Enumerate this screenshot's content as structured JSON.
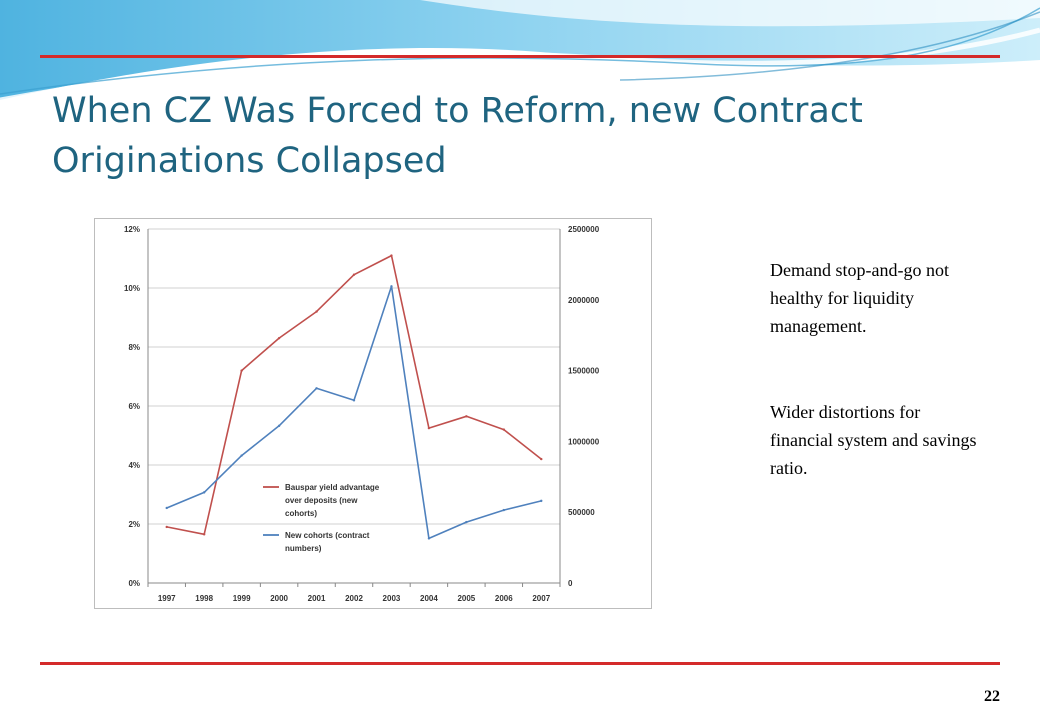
{
  "slide": {
    "title_line1": "When CZ Was Forced to Reform, new Contract",
    "title_line2": "Originations Collapsed",
    "paragraph1": "Demand stop-and-go not healthy for liquidity management.",
    "paragraph2": "Wider distortions for financial system and savings ratio.",
    "page_number": "22",
    "colors": {
      "title": "#1f6480",
      "rule": "#d42a2a"
    }
  },
  "chart_data": {
    "type": "line",
    "categories": [
      "1997",
      "1998",
      "1999",
      "2000",
      "2001",
      "2002",
      "2003",
      "2004",
      "2005",
      "2006",
      "2007"
    ],
    "left_axis": {
      "ticks": [
        "0%",
        "2%",
        "4%",
        "6%",
        "8%",
        "10%",
        "12%"
      ],
      "min": 0,
      "max": 12
    },
    "right_axis": {
      "ticks": [
        "0",
        "500000",
        "1000000",
        "1500000",
        "2000000",
        "2500000"
      ],
      "min": 0,
      "max": 2500000
    },
    "grid": true,
    "legend_position": "lower-left inside",
    "series": [
      {
        "name_lines": [
          "Bauspar yield advantage",
          "over deposits (new",
          "cohorts)"
        ],
        "axis": "left",
        "color": "#c0504d",
        "values": [
          1.9,
          1.65,
          7.2,
          8.3,
          9.2,
          10.45,
          11.1,
          5.25,
          5.65,
          5.2,
          4.2
        ]
      },
      {
        "name_lines": [
          "New cohorts (contract",
          "numbers)"
        ],
        "axis": "right",
        "color": "#4f81bd",
        "values": [
          530000,
          640000,
          900000,
          1110000,
          1375000,
          1290000,
          2095000,
          315000,
          430000,
          515000,
          580000
        ]
      }
    ]
  }
}
